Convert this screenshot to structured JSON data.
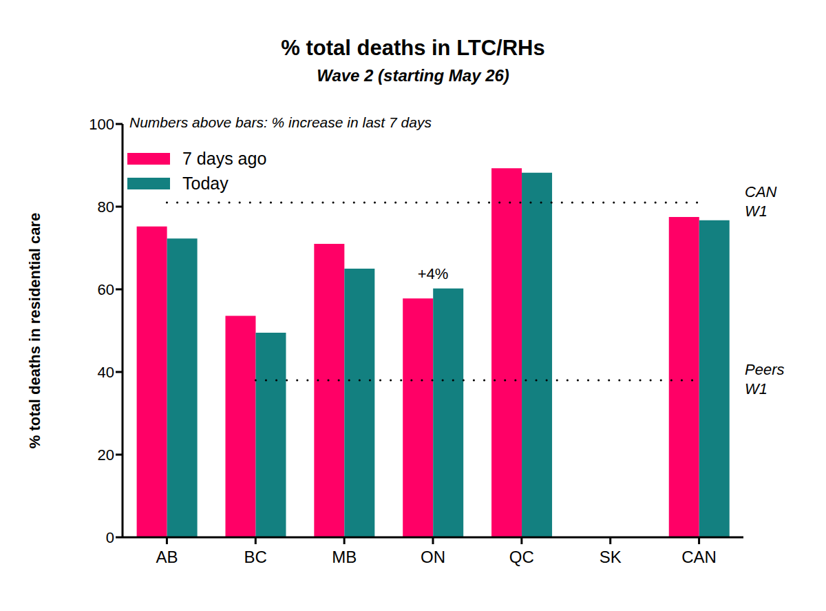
{
  "chart_data": {
    "type": "bar",
    "title": "% total deaths in LTC/RHs",
    "subtitle": "Wave 2 (starting May 26)",
    "note": "Numbers above bars: % increase in last 7 days",
    "y_label": "% total deaths in residential care",
    "categories": [
      "AB",
      "BC",
      "MB",
      "ON",
      "QC",
      "SK",
      "CAN"
    ],
    "series": [
      {
        "name": "7 days ago",
        "color": "#ff0066",
        "values": [
          75.2,
          53.6,
          71.0,
          57.8,
          89.3,
          null,
          77.5
        ]
      },
      {
        "name": "Today",
        "color": "#138080",
        "values": [
          72.3,
          49.5,
          65.0,
          60.2,
          88.2,
          null,
          76.7
        ]
      }
    ],
    "ylim": [
      0,
      100
    ],
    "yticks": [
      0,
      20,
      40,
      60,
      80,
      100
    ],
    "grid": false,
    "legend": "upper left",
    "reference_lines": [
      {
        "value": 81,
        "label_lines": [
          "CAN",
          "W1"
        ],
        "from": "AB",
        "to": "CAN"
      },
      {
        "value": 38,
        "label_lines": [
          "Peers",
          "W1"
        ],
        "from": "BC",
        "to": "CAN"
      }
    ],
    "annotations": [
      {
        "category": "ON",
        "text": "+4%"
      }
    ]
  }
}
